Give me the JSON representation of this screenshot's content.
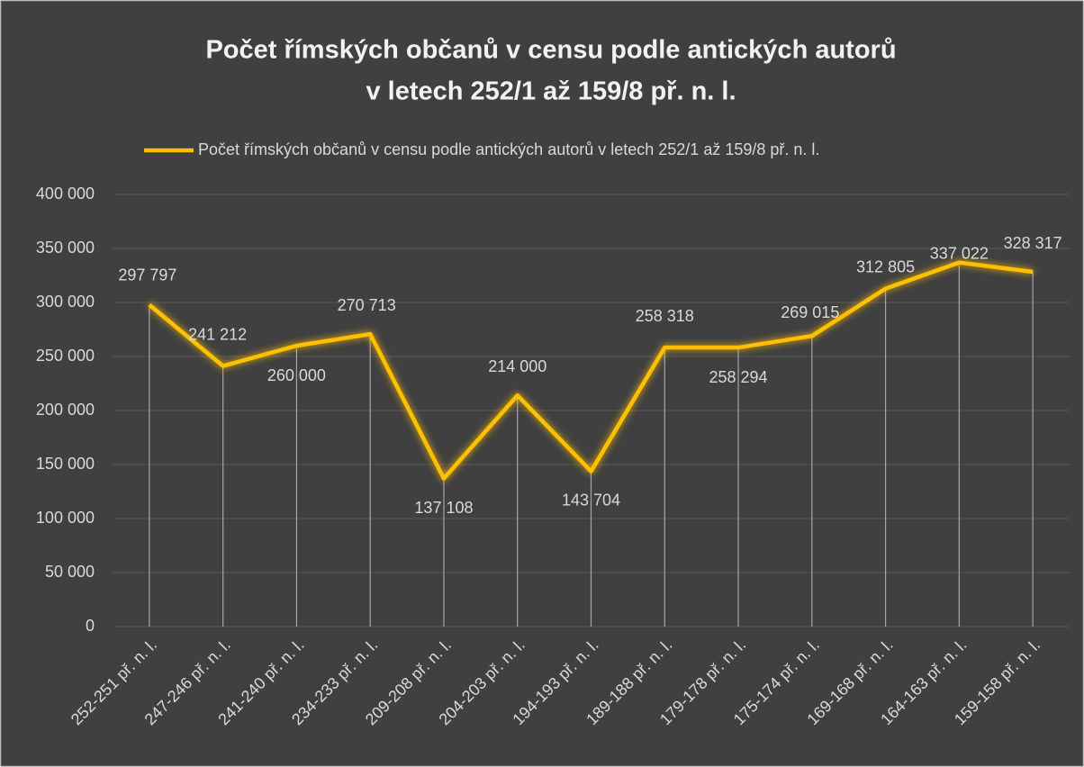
{
  "chart_data": {
    "type": "line",
    "title": [
      "Počet římských občanů v censu podle antických autorů",
      "v letech 252/1 až 159/8 př. n. l."
    ],
    "categories": [
      "252-251 př. n. l.",
      "247-246 př. n. l.",
      "241-240 př. n. l.",
      "234-233 př. n. l.",
      "209-208 př. n. l.",
      "204-203 př. n. l.",
      "194-193 př. n. l.",
      "189-188 př. n. l.",
      "179-178 př. n. l.",
      "175-174 př. n. l.",
      "169-168 př. n. l.",
      "164-163 př. n. l.",
      "159-158 př. n. l."
    ],
    "series": [
      {
        "name": "Počet římských občanů v censu podle antických autorů v letech 252/1 až 159/8 př. n. l.",
        "color": "#ffc000",
        "values": [
          297797,
          241212,
          260000,
          270713,
          137108,
          214000,
          143704,
          258318,
          258294,
          269015,
          312805,
          337022,
          328317
        ],
        "value_labels": [
          "297 797",
          "241 212",
          "260 000",
          "270 713",
          "137 108",
          "214 000",
          "143 704",
          "258 318",
          "258 294",
          "269 015",
          "312 805",
          "337 022",
          "328 317"
        ]
      }
    ],
    "ylim": [
      0,
      400000
    ],
    "yticks": [
      0,
      {
        "value": 50000,
        "label": "50 000"
      },
      {
        "value": 100000,
        "label": "100 000"
      },
      {
        "value": 150000,
        "label": "150 000"
      },
      {
        "value": 200000,
        "label": "200 000"
      },
      {
        "value": 250000,
        "label": "250 000"
      },
      {
        "value": 300000,
        "label": "300 000"
      },
      {
        "value": 350000,
        "label": "350 000"
      },
      {
        "value": 400000,
        "label": "400 000"
      }
    ],
    "grid": true,
    "legend": "top",
    "drop_lines": true
  }
}
